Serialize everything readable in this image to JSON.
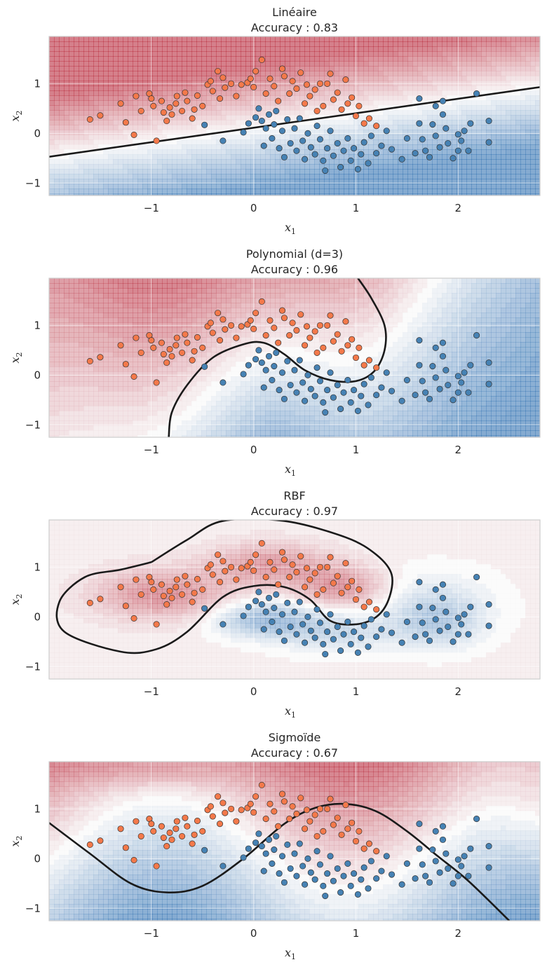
{
  "chart_data": [
    {
      "type": "scatter",
      "subtype": "decision-boundary",
      "title": "Linéaire",
      "subtitle": "Accuracy : 0.83",
      "xlabel": "x",
      "xlabel_sub": "1",
      "ylabel": "x",
      "ylabel_sub": "2",
      "xlim": [
        -2.0,
        2.8
      ],
      "ylim": [
        -1.25,
        1.95
      ],
      "xticks": [
        "−1",
        "0",
        "1",
        "2"
      ],
      "xtick_values": [
        -1,
        0,
        1,
        2
      ],
      "yticks": [
        "−1",
        "0",
        "1"
      ],
      "ytick_values": [
        -1,
        0,
        1
      ],
      "grid": true,
      "kernel": "linear",
      "boundary": [
        [
          -2.0,
          -0.47
        ],
        [
          2.8,
          0.93
        ]
      ],
      "colormap": [
        "#b2182b",
        "#f7f7f7",
        "#2166ac"
      ],
      "class_colors": {
        "class_0": "#f4794a",
        "class_1": "#4682b4"
      }
    },
    {
      "type": "scatter",
      "subtype": "decision-boundary",
      "title": "Polynomial (d=3)",
      "subtitle": "Accuracy : 0.96",
      "xlabel": "x",
      "xlabel_sub": "1",
      "ylabel": "x",
      "ylabel_sub": "2",
      "xlim": [
        -2.0,
        2.8
      ],
      "ylim": [
        -1.25,
        1.95
      ],
      "xticks": [
        "−1",
        "0",
        "1",
        "2"
      ],
      "xtick_values": [
        -1,
        0,
        1,
        2
      ],
      "yticks": [
        "−1",
        "0",
        "1"
      ],
      "ytick_values": [
        -1,
        0,
        1
      ],
      "grid": true,
      "kernel": "poly",
      "boundary": [
        [
          -0.83,
          -1.25
        ],
        [
          -0.8,
          -0.75
        ],
        [
          -0.65,
          -0.2
        ],
        [
          -0.4,
          0.35
        ],
        [
          -0.1,
          0.62
        ],
        [
          0.1,
          0.65
        ],
        [
          0.3,
          0.42
        ],
        [
          0.5,
          0.1
        ],
        [
          0.75,
          -0.1
        ],
        [
          1.0,
          -0.12
        ],
        [
          1.18,
          0.08
        ],
        [
          1.28,
          0.5
        ],
        [
          1.28,
          1.0
        ],
        [
          1.15,
          1.55
        ],
        [
          1.02,
          1.95
        ]
      ],
      "colormap": [
        "#b2182b",
        "#f7f7f7",
        "#2166ac"
      ],
      "class_colors": {
        "class_0": "#f4794a",
        "class_1": "#4682b4"
      }
    },
    {
      "type": "scatter",
      "subtype": "decision-boundary",
      "title": "RBF",
      "subtitle": "Accuracy : 0.97",
      "xlabel": "x",
      "xlabel_sub": "1",
      "ylabel": "x",
      "ylabel_sub": "2",
      "xlim": [
        -2.0,
        2.8
      ],
      "ylim": [
        -1.25,
        1.95
      ],
      "xticks": [
        "−1",
        "0",
        "1",
        "2"
      ],
      "xtick_values": [
        -1,
        0,
        1,
        2
      ],
      "yticks": [
        "−1",
        "0",
        "1"
      ],
      "ytick_values": [
        -1,
        0,
        1
      ],
      "grid": true,
      "kernel": "rbf",
      "boundary": [
        [
          -1.0,
          1.1
        ],
        [
          -0.65,
          1.55
        ],
        [
          -0.3,
          1.93
        ],
        [
          0.3,
          1.93
        ],
        [
          0.9,
          1.6
        ],
        [
          1.2,
          1.25
        ],
        [
          1.35,
          0.85
        ],
        [
          1.32,
          0.35
        ],
        [
          1.2,
          0.0
        ],
        [
          1.0,
          -0.15
        ],
        [
          0.75,
          -0.08
        ],
        [
          0.55,
          0.35
        ],
        [
          0.3,
          0.6
        ],
        [
          0.0,
          0.62
        ],
        [
          -0.3,
          0.4
        ],
        [
          -0.65,
          -0.3
        ],
        [
          -0.95,
          -0.65
        ],
        [
          -1.3,
          -0.7
        ],
        [
          -1.85,
          -0.3
        ],
        [
          -1.9,
          0.3
        ],
        [
          -1.65,
          0.8
        ],
        [
          -1.3,
          0.95
        ],
        [
          -1.0,
          1.1
        ]
      ],
      "colormap": [
        "#b2182b",
        "#f7f7f7",
        "#2166ac"
      ],
      "class_colors": {
        "class_0": "#f4794a",
        "class_1": "#4682b4"
      }
    },
    {
      "type": "scatter",
      "subtype": "decision-boundary",
      "title": "Sigmoïde",
      "subtitle": "Accuracy : 0.67",
      "xlabel": "x",
      "xlabel_sub": "1",
      "ylabel": "x",
      "ylabel_sub": "2",
      "xlim": [
        -2.0,
        2.8
      ],
      "ylim": [
        -1.25,
        1.95
      ],
      "xticks": [
        "−1",
        "0",
        "1",
        "2"
      ],
      "xtick_values": [
        -1,
        0,
        1,
        2
      ],
      "yticks": [
        "−1",
        "0",
        "1"
      ],
      "ytick_values": [
        -1,
        0,
        1
      ],
      "grid": true,
      "kernel": "sigmoid",
      "boundary": [
        [
          -2.0,
          0.72
        ],
        [
          -1.6,
          0.1
        ],
        [
          -1.2,
          -0.5
        ],
        [
          -0.85,
          -0.68
        ],
        [
          -0.5,
          -0.55
        ],
        [
          -0.1,
          0.0
        ],
        [
          0.3,
          0.7
        ],
        [
          0.6,
          1.02
        ],
        [
          0.9,
          1.1
        ],
        [
          1.2,
          0.95
        ],
        [
          1.5,
          0.55
        ],
        [
          1.8,
          0.05
        ],
        [
          2.1,
          -0.45
        ],
        [
          2.5,
          -1.25
        ]
      ],
      "colormap": [
        "#b2182b",
        "#f7f7f7",
        "#2166ac"
      ],
      "class_colors": {
        "class_0": "#f4794a",
        "class_1": "#4682b4"
      }
    }
  ],
  "points": {
    "class_0": [
      [
        -1.5,
        0.36
      ],
      [
        -1.3,
        0.6
      ],
      [
        -1.17,
        -0.03
      ],
      [
        -1.15,
        0.75
      ],
      [
        -1.1,
        0.45
      ],
      [
        -1.02,
        0.8
      ],
      [
        -1.0,
        0.7
      ],
      [
        -0.98,
        0.55
      ],
      [
        -0.9,
        0.65
      ],
      [
        -0.88,
        0.42
      ],
      [
        -0.85,
        0.25
      ],
      [
        -0.82,
        0.52
      ],
      [
        -0.8,
        0.38
      ],
      [
        -0.76,
        0.6
      ],
      [
        -0.75,
        0.75
      ],
      [
        -0.7,
        0.45
      ],
      [
        -0.67,
        0.82
      ],
      [
        -0.65,
        0.65
      ],
      [
        -0.6,
        0.3
      ],
      [
        -0.58,
        0.48
      ],
      [
        -0.55,
        0.76
      ],
      [
        -0.5,
        0.55
      ],
      [
        -0.45,
        0.98
      ],
      [
        -0.42,
        1.05
      ],
      [
        -0.4,
        0.85
      ],
      [
        -0.35,
        1.25
      ],
      [
        -0.33,
        0.7
      ],
      [
        -0.3,
        1.12
      ],
      [
        -0.28,
        0.92
      ],
      [
        -0.22,
        1.0
      ],
      [
        -0.17,
        0.75
      ],
      [
        -0.12,
        0.98
      ],
      [
        -0.06,
        1.02
      ],
      [
        0.0,
        0.93
      ],
      [
        0.02,
        1.25
      ],
      [
        0.08,
        1.48
      ],
      [
        0.12,
        0.8
      ],
      [
        0.16,
        1.1
      ],
      [
        0.2,
        0.95
      ],
      [
        0.24,
        0.65
      ],
      [
        0.28,
        1.3
      ],
      [
        0.3,
        1.15
      ],
      [
        0.35,
        0.8
      ],
      [
        0.38,
        1.05
      ],
      [
        0.42,
        0.9
      ],
      [
        0.46,
        1.22
      ],
      [
        0.5,
        0.6
      ],
      [
        0.52,
        0.98
      ],
      [
        0.55,
        0.75
      ],
      [
        0.6,
        0.88
      ],
      [
        0.62,
        0.45
      ],
      [
        0.68,
        0.55
      ],
      [
        0.72,
        1.0
      ],
      [
        0.78,
        0.68
      ],
      [
        0.82,
        0.82
      ],
      [
        0.86,
        0.48
      ],
      [
        0.9,
        1.08
      ],
      [
        0.92,
        0.6
      ],
      [
        0.96,
        0.72
      ],
      [
        1.0,
        0.35
      ],
      [
        1.03,
        0.55
      ],
      [
        1.08,
        0.2
      ],
      [
        1.13,
        0.3
      ],
      [
        1.2,
        0.15
      ],
      [
        -1.6,
        0.28
      ],
      [
        -0.95,
        -0.15
      ],
      [
        -1.25,
        0.22
      ],
      [
        0.65,
        1.0
      ],
      [
        -0.03,
        1.1
      ],
      [
        0.75,
        1.2
      ]
    ],
    "class_1": [
      [
        -0.48,
        0.17
      ],
      [
        -0.3,
        -0.15
      ],
      [
        -0.1,
        0.02
      ],
      [
        -0.05,
        0.2
      ],
      [
        0.02,
        0.32
      ],
      [
        0.05,
        0.5
      ],
      [
        0.08,
        0.25
      ],
      [
        0.12,
        0.1
      ],
      [
        0.15,
        0.38
      ],
      [
        0.18,
        -0.1
      ],
      [
        0.2,
        0.18
      ],
      [
        0.22,
        0.45
      ],
      [
        0.25,
        -0.3
      ],
      [
        0.28,
        0.05
      ],
      [
        0.3,
        -0.48
      ],
      [
        0.33,
        0.28
      ],
      [
        0.36,
        -0.2
      ],
      [
        0.4,
        0.1
      ],
      [
        0.42,
        -0.35
      ],
      [
        0.45,
        0.3
      ],
      [
        0.48,
        -0.15
      ],
      [
        0.5,
        -0.52
      ],
      [
        0.53,
        0.0
      ],
      [
        0.56,
        -0.28
      ],
      [
        0.6,
        -0.42
      ],
      [
        0.62,
        0.15
      ],
      [
        0.65,
        -0.12
      ],
      [
        0.68,
        -0.55
      ],
      [
        0.72,
        -0.3
      ],
      [
        0.75,
        0.05
      ],
      [
        0.78,
        -0.45
      ],
      [
        0.82,
        -0.2
      ],
      [
        0.85,
        -0.68
      ],
      [
        0.88,
        -0.35
      ],
      [
        0.92,
        -0.1
      ],
      [
        0.95,
        -0.55
      ],
      [
        0.98,
        -0.3
      ],
      [
        1.02,
        -0.72
      ],
      [
        1.05,
        -0.42
      ],
      [
        1.08,
        -0.18
      ],
      [
        1.12,
        -0.6
      ],
      [
        1.15,
        -0.05
      ],
      [
        1.2,
        -0.4
      ],
      [
        1.25,
        -0.25
      ],
      [
        1.3,
        0.05
      ],
      [
        1.35,
        -0.32
      ],
      [
        1.5,
        -0.1
      ],
      [
        1.58,
        -0.4
      ],
      [
        1.62,
        0.2
      ],
      [
        1.65,
        -0.12
      ],
      [
        1.68,
        -0.35
      ],
      [
        1.72,
        -0.48
      ],
      [
        1.75,
        0.18
      ],
      [
        1.78,
        -0.05
      ],
      [
        1.82,
        -0.28
      ],
      [
        1.85,
        0.38
      ],
      [
        1.88,
        0.1
      ],
      [
        1.9,
        -0.2
      ],
      [
        1.95,
        -0.5
      ],
      [
        2.0,
        -0.02
      ],
      [
        2.03,
        -0.15
      ],
      [
        2.06,
        0.05
      ],
      [
        2.1,
        -0.35
      ],
      [
        2.12,
        0.2
      ],
      [
        2.18,
        0.8
      ],
      [
        2.3,
        0.25
      ],
      [
        2.3,
        -0.18
      ],
      [
        1.62,
        0.7
      ],
      [
        1.85,
        0.65
      ],
      [
        1.45,
        -0.52
      ],
      [
        0.1,
        -0.25
      ],
      [
        0.7,
        -0.75
      ],
      [
        1.78,
        0.55
      ],
      [
        2.0,
        -0.35
      ]
    ]
  }
}
